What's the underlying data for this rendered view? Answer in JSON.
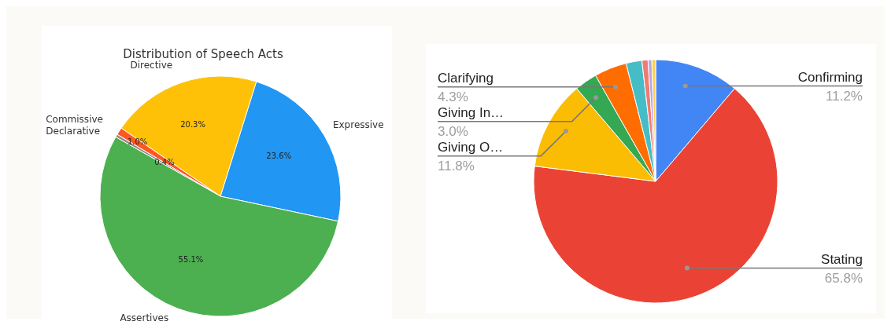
{
  "chart_data": [
    {
      "type": "pie",
      "title": "Distribution of Speech Acts",
      "categories": [
        "Expressive",
        "Directive",
        "Commissive",
        "Declarative",
        "Assertives"
      ],
      "values": [
        23.6,
        20.3,
        1.0,
        0.4,
        55.1
      ],
      "colors": [
        "#2196f3",
        "#ffc107",
        "#ff5722",
        "#a1887f",
        "#4caf50"
      ],
      "value_labels": [
        "23.6%",
        "20.3%",
        "1.0%",
        "0.4%",
        "55.1%"
      ],
      "legend": false
    },
    {
      "type": "pie",
      "categories": [
        "Confirming",
        "Stating",
        "Giving O…",
        "Giving In…",
        "Clarifying",
        null,
        null,
        null,
        null
      ],
      "values": [
        11.2,
        65.8,
        11.8,
        3.0,
        4.3,
        2.1,
        0.8,
        0.5,
        0.5
      ],
      "colors": [
        "#4285f4",
        "#ea4335",
        "#fbbc04",
        "#34a853",
        "#ff6d01",
        "#46bdc6",
        "#f07b72",
        "#b9a6e3",
        "#fcd04f"
      ],
      "value_labels": [
        "11.2%",
        "65.8%",
        "11.8%",
        "3.0%",
        "4.3%",
        null,
        null,
        null,
        null
      ],
      "legend": false
    }
  ]
}
